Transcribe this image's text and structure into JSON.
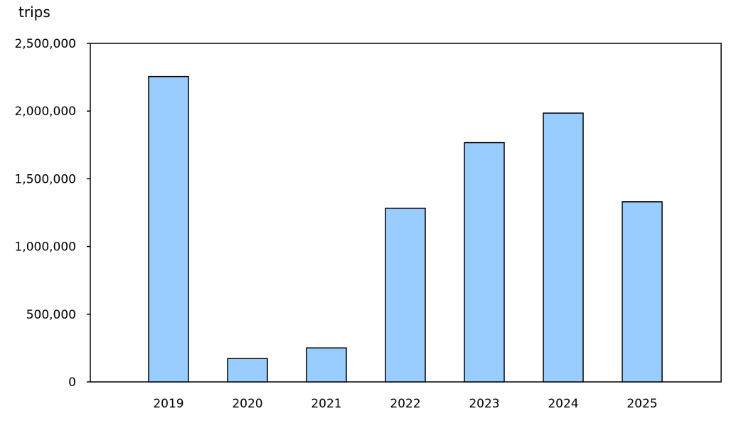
{
  "chart_data": {
    "type": "bar",
    "unit_label": "trips",
    "categories": [
      "2019",
      "2020",
      "2021",
      "2022",
      "2023",
      "2024",
      "2025"
    ],
    "values": [
      2255000,
      172000,
      251000,
      1282000,
      1767000,
      1985000,
      1330000
    ],
    "ylim": [
      0,
      2500000
    ],
    "yticks": [
      0,
      500000,
      1000000,
      1500000,
      2000000,
      2500000
    ],
    "ytick_labels": [
      "0",
      "500,000",
      "1,000,000",
      "1,500,000",
      "2,000,000",
      "2,500,000"
    ],
    "bar_color": "#99ccff",
    "bar_edge_color": "#000000",
    "grid": false,
    "legend": "none"
  }
}
